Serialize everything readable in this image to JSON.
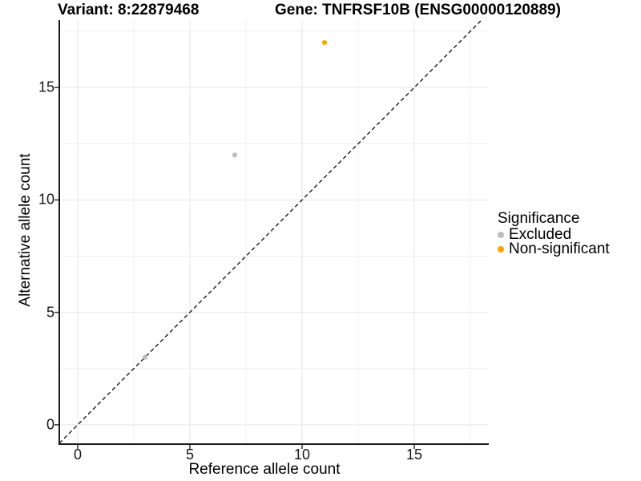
{
  "chart_data": {
    "type": "scatter",
    "title_left": "Variant: 8:22879468",
    "title_right": "Gene: TNFRSF10B (ENSG00000120889)",
    "xlabel": "Reference allele count",
    "ylabel": "Alternative allele count",
    "x_ticks": [
      0,
      5,
      10,
      15
    ],
    "y_ticks": [
      0,
      5,
      10,
      15
    ],
    "x_minor_ticks": [
      2.5,
      7.5,
      12.5,
      17.5
    ],
    "y_minor_ticks": [
      2.5,
      7.5,
      12.5,
      17.5
    ],
    "x_domain": [
      -0.82,
      18.32
    ],
    "y_domain": [
      -0.86,
      18.0
    ],
    "grid": true,
    "reference_line": {
      "type": "identity",
      "equation": "y = x",
      "style": "dashed",
      "color": "#1a1a1a"
    },
    "series": [
      {
        "name": "Excluded",
        "color": "#BEBEBE",
        "points": [
          {
            "x": 3,
            "y": 3
          },
          {
            "x": 7,
            "y": 12
          }
        ]
      },
      {
        "name": "Non-significant",
        "color": "#FFA500",
        "points": [
          {
            "x": 11,
            "y": 17
          }
        ]
      }
    ],
    "legend": {
      "title": "Significance",
      "position": "right"
    },
    "colors": {
      "axis_line": "#1a1a1a",
      "grid_major": "#e6e6e6",
      "grid_minor": "#f0f0f0",
      "tick_mark": "#333333"
    }
  }
}
